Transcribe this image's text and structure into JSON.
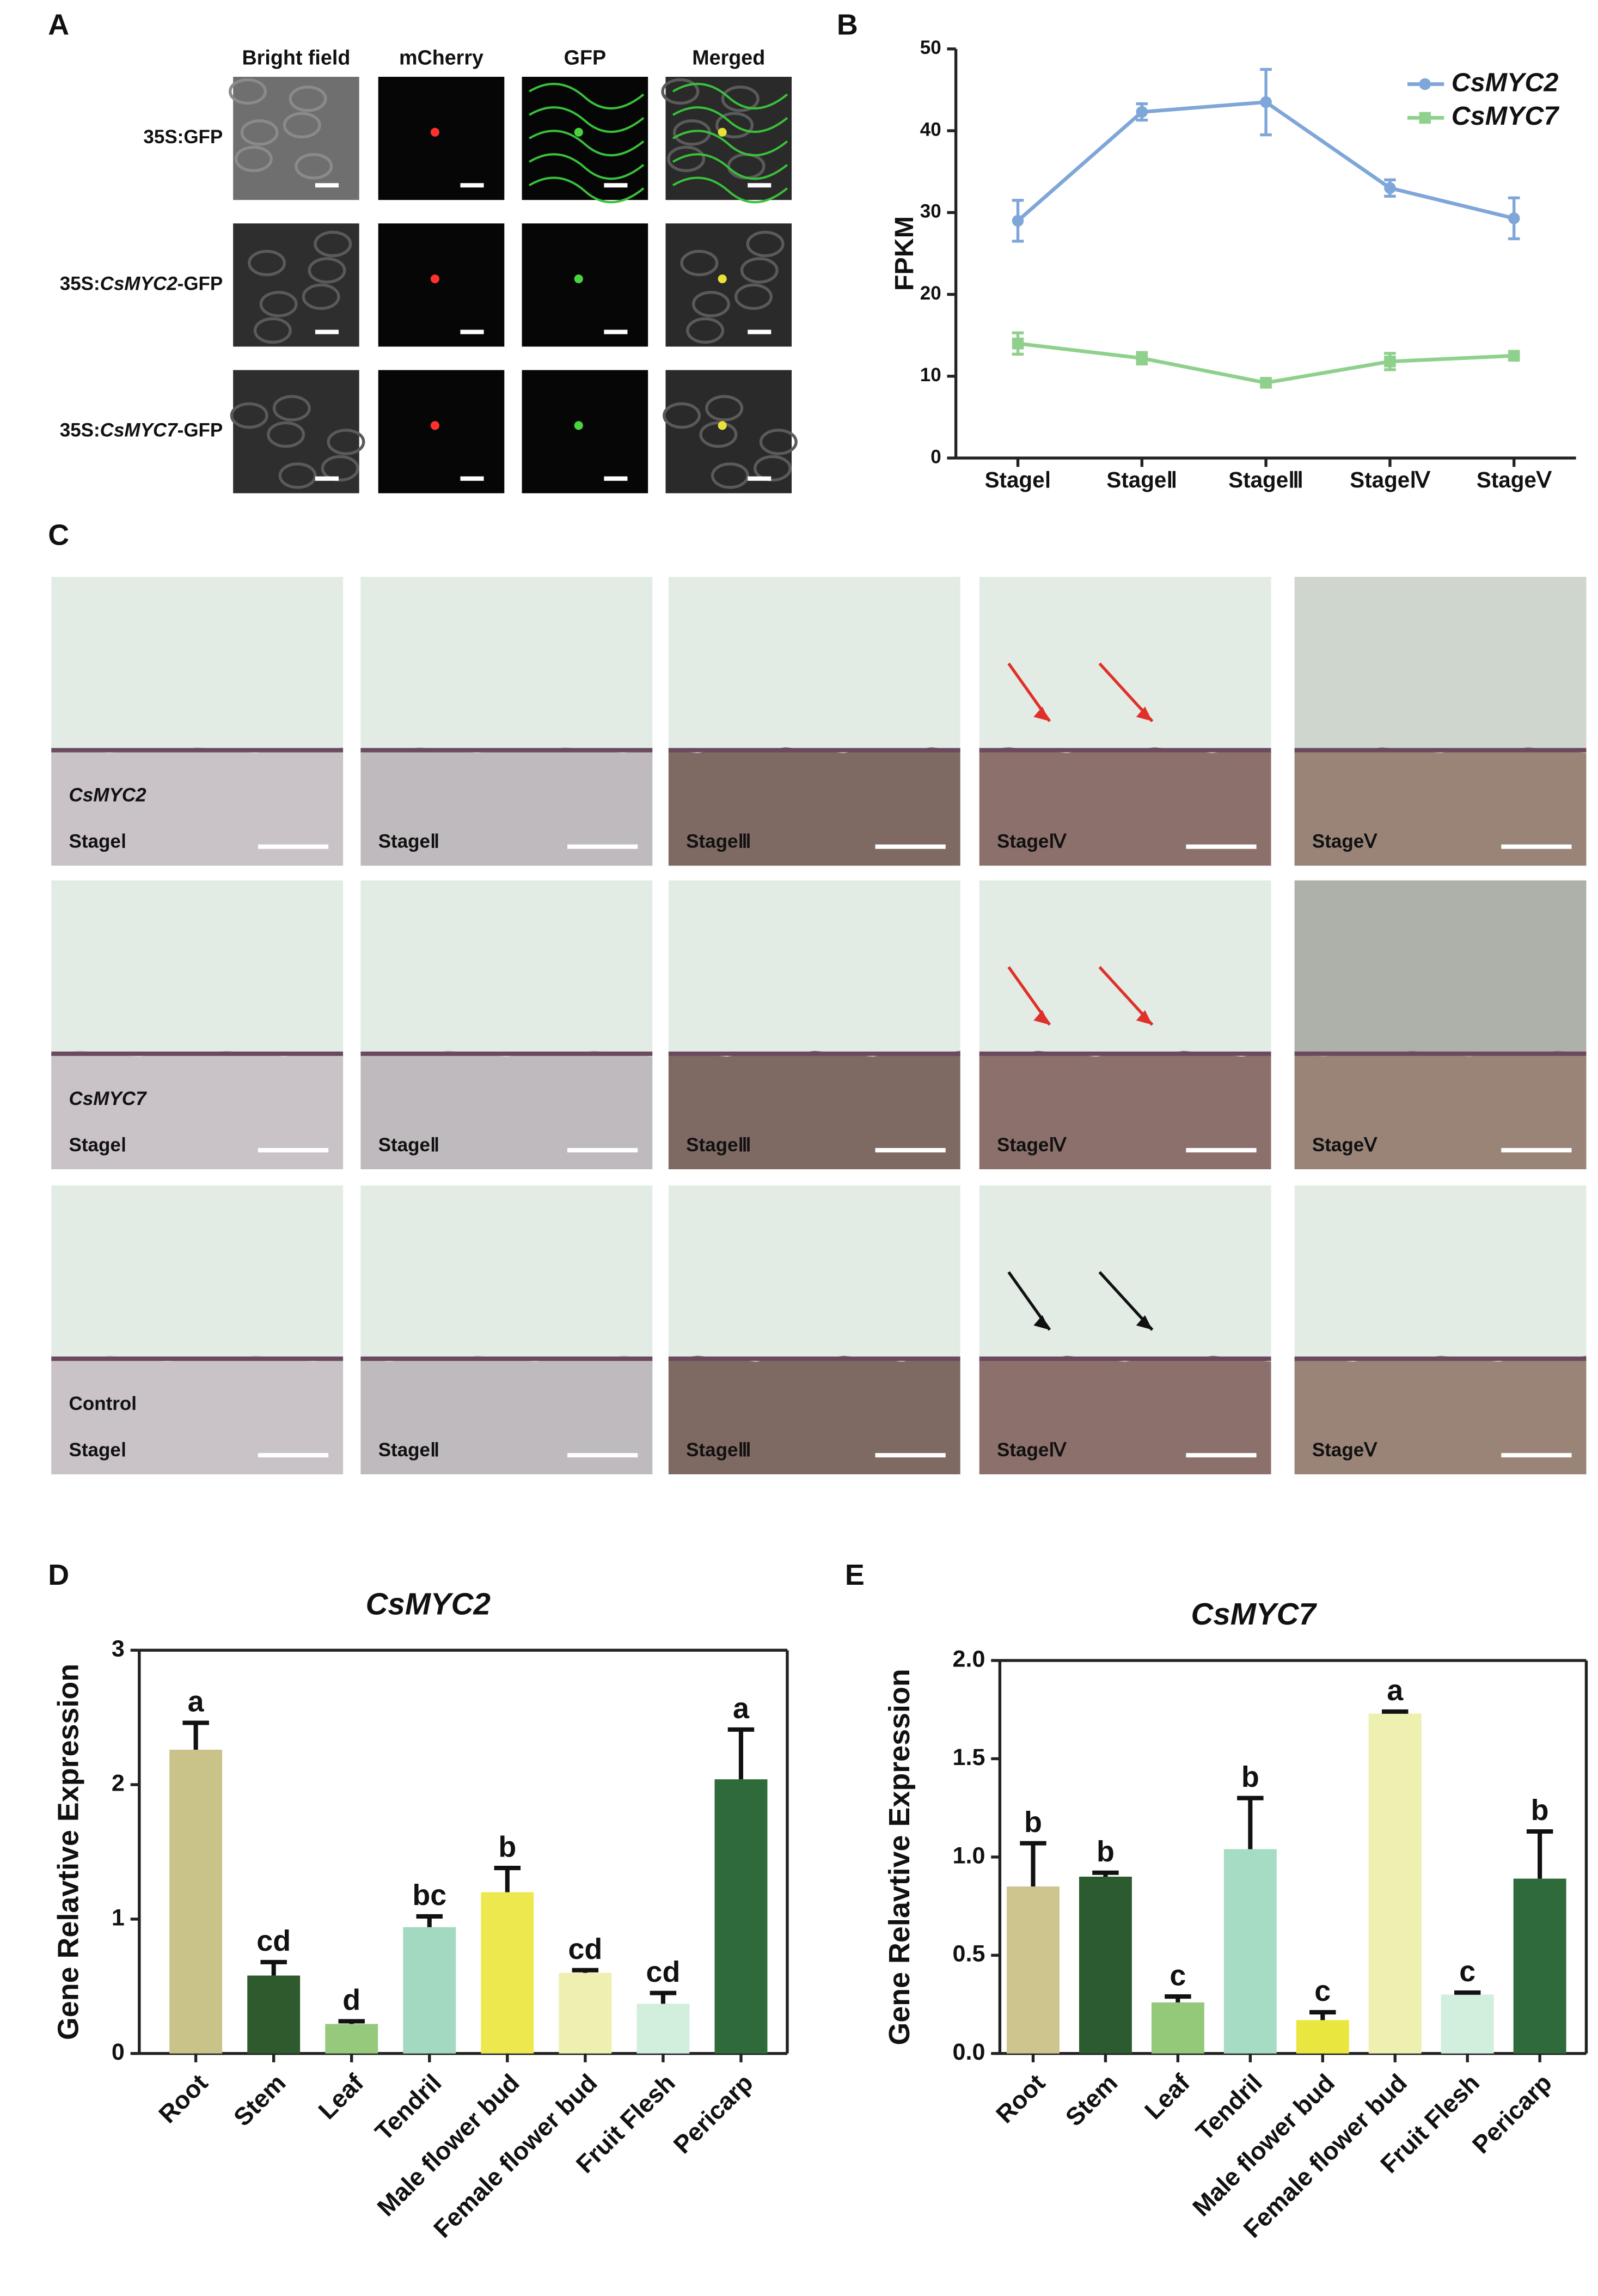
{
  "panel_labels": [
    "A",
    "B",
    "C",
    "D",
    "E"
  ],
  "panel_a": {
    "columns": [
      "Bright field",
      "mCherry",
      "GFP",
      "Merged"
    ],
    "rows": [
      [
        "35S:GFP"
      ],
      [
        "35S:",
        "CsMYC2",
        "-GFP"
      ],
      [
        "35S:",
        "CsMYC7",
        "-GFP"
      ]
    ]
  },
  "panel_c": {
    "rows": [
      "CsMYC2",
      "CsMYC7",
      "Control"
    ],
    "stages": [
      "StageⅠ",
      "StageⅡ",
      "StageⅢ",
      "StageⅣ",
      "StageⅤ"
    ]
  },
  "chart_data": [
    {
      "type": "line",
      "ylabel": "FPKM",
      "categories": [
        "StageⅠ",
        "StageⅡ",
        "StageⅢ",
        "StageⅣ",
        "StageⅤ"
      ],
      "ylim": [
        0,
        50
      ],
      "yticks": [
        0,
        10,
        20,
        30,
        40,
        50
      ],
      "series": [
        {
          "name": "CsMYC2",
          "color": "#7fa6d8",
          "marker": "circle",
          "values": [
            29,
            42.3,
            43.5,
            33,
            29.3
          ],
          "errors": [
            2.5,
            1,
            4,
            1,
            2.5
          ]
        },
        {
          "name": "CsMYC7",
          "color": "#8ed08c",
          "marker": "square",
          "values": [
            14,
            12.2,
            9.2,
            11.8,
            12.5
          ],
          "errors": [
            1.3,
            0.7,
            0.3,
            1,
            0.4
          ]
        }
      ]
    },
    {
      "type": "bar",
      "title": "CsMYC2",
      "ylabel": "Gene Relavtive Expression",
      "categories": [
        "Root",
        "Stem",
        "Leaf",
        "Tendril",
        "Male flower bud",
        "Female flower bud",
        "Fruit Flesh",
        "Pericarp"
      ],
      "values": [
        2.26,
        0.58,
        0.22,
        0.94,
        1.2,
        0.6,
        0.37,
        2.04
      ],
      "errors": [
        0.2,
        0.1,
        0.02,
        0.08,
        0.18,
        0.02,
        0.08,
        0.37
      ],
      "letters": [
        "a",
        "cd",
        "d",
        "bc",
        "b",
        "cd",
        "cd",
        "a"
      ],
      "colors": [
        "#c9c38a",
        "#2e5a2e",
        "#96c97c",
        "#a3d9c0",
        "#ede84e",
        "#eef0b0",
        "#d2eedd",
        "#2f6b3a"
      ],
      "ylim": [
        0,
        3
      ],
      "yticks": [
        0,
        1,
        2,
        3
      ]
    },
    {
      "type": "bar",
      "title": "CsMYC7",
      "ylabel": "Gene Relavtive Expression",
      "categories": [
        "Root",
        "Stem",
        "Leaf",
        "Tendril",
        "Male flower bud",
        "Female flower bud",
        "Fruit Flesh",
        "Pericarp"
      ],
      "values": [
        0.85,
        0.9,
        0.26,
        1.04,
        0.17,
        1.73,
        0.3,
        0.89
      ],
      "errors": [
        0.22,
        0.02,
        0.03,
        0.26,
        0.04,
        0.01,
        0.01,
        0.24
      ],
      "letters": [
        "b",
        "b",
        "c",
        "b",
        "c",
        "a",
        "c",
        "b"
      ],
      "colors": [
        "#cdc58d",
        "#2b5b2e",
        "#94c97a",
        "#a5dcc3",
        "#eae640",
        "#eef0b0",
        "#d2eedd",
        "#2f6b3a"
      ],
      "ylim": [
        0,
        2
      ],
      "yticks": [
        {
          "value": 0,
          "label": "0.0"
        },
        0.5,
        {
          "value": 1,
          "label": "1.0"
        },
        1.5,
        {
          "value": 2,
          "label": "2.0"
        }
      ]
    }
  ]
}
